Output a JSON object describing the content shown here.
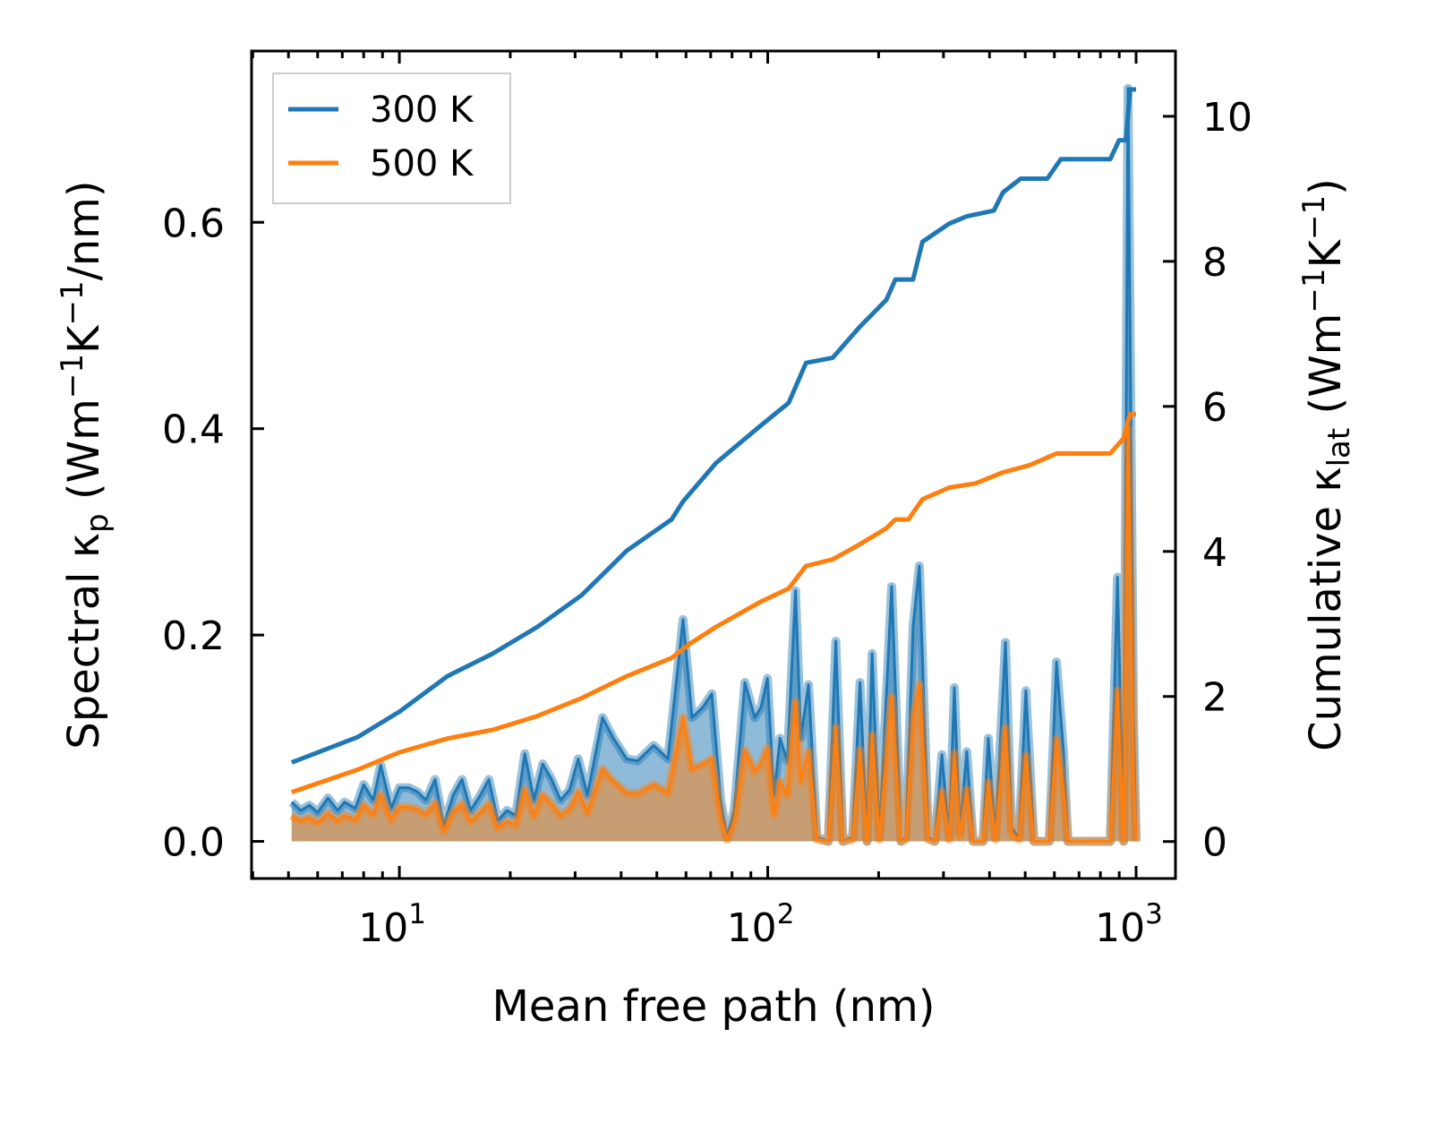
{
  "chart_data": {
    "type": "line",
    "xlabel": "Mean free path (nm)",
    "xscale": "log",
    "xlim": [
      3.97,
      1279
    ],
    "ylim_left": [
      -0.036,
      0.766
    ],
    "ylim_right": [
      -0.51,
      10.9
    ],
    "ylabel_left": {
      "a": "Spectral κ",
      "sub": "p",
      "b": " (Wm",
      "sup1": "−1",
      "c": "K",
      "sup2": "−1",
      "d": "/nm)"
    },
    "ylabel_right": {
      "a": "Cumulative κ",
      "sub": "lat",
      "b": " (Wm",
      "sup1": "−1",
      "c": "K",
      "sup2": "−1",
      "d": ")"
    },
    "x_ticks": [
      {
        "base": "10",
        "exp": "1",
        "value": 10
      },
      {
        "base": "10",
        "exp": "2",
        "value": 100
      },
      {
        "base": "10",
        "exp": "3",
        "value": 1000
      }
    ],
    "y_left_ticks": [
      {
        "label": "0.0",
        "value": 0
      },
      {
        "label": "0.2",
        "value": 0.2
      },
      {
        "label": "0.4",
        "value": 0.4
      },
      {
        "label": "0.6",
        "value": 0.6
      }
    ],
    "y_right_ticks": [
      {
        "label": "0",
        "value": 0
      },
      {
        "label": "2",
        "value": 2
      },
      {
        "label": "4",
        "value": 4
      },
      {
        "label": "6",
        "value": 6
      },
      {
        "label": "8",
        "value": 8
      },
      {
        "label": "10",
        "value": 10
      }
    ],
    "legend": {
      "placement": "top-left",
      "entries": [
        {
          "label": "300 K",
          "color": "#1f77b4"
        },
        {
          "label": "500 K",
          "color": "#ff7f0e"
        }
      ]
    },
    "spectral": {
      "x": [
        5.1,
        5.4,
        5.7,
        6.0,
        6.4,
        6.8,
        7.1,
        7.6,
        8.0,
        8.5,
        8.9,
        9.5,
        10,
        10.6,
        11.2,
        11.8,
        12.5,
        13.2,
        14.0,
        14.8,
        15.6,
        16.6,
        17.5,
        18.5,
        19.6,
        20.7,
        21.9,
        23.2,
        24.5,
        25.9,
        27.4,
        29.0,
        30.6,
        32.4,
        35.6,
        38.1,
        41.4,
        44.3,
        49.0,
        53.6,
        58.9,
        62.3,
        66.7,
        70.5,
        74.5,
        77.5,
        81.1,
        86.7,
        92.2,
        95.9,
        99.8,
        104,
        108,
        113,
        119,
        123,
        129,
        136,
        146,
        153,
        160,
        170,
        178,
        186,
        192,
        201,
        217,
        230,
        237,
        248,
        258,
        273,
        284,
        297,
        311,
        321,
        332,
        347,
        361,
        384,
        397,
        415,
        442,
        459,
        481,
        502,
        528,
        581,
        608,
        635,
        653,
        851,
        890,
        925,
        951,
        984,
        1000
      ],
      "series": [
        {
          "name": "300 K",
          "color": "#1f77b4",
          "values": [
            0.038,
            0.03,
            0.035,
            0.028,
            0.042,
            0.03,
            0.038,
            0.032,
            0.055,
            0.04,
            0.074,
            0.032,
            0.052,
            0.052,
            0.048,
            0.04,
            0.06,
            0.015,
            0.045,
            0.06,
            0.03,
            0.045,
            0.06,
            0.02,
            0.03,
            0.025,
            0.085,
            0.04,
            0.075,
            0.06,
            0.04,
            0.05,
            0.08,
            0.045,
            0.12,
            0.1,
            0.08,
            0.078,
            0.093,
            0.08,
            0.215,
            0.12,
            0.13,
            0.143,
            0.04,
            0.004,
            0.03,
            0.154,
            0.12,
            0.13,
            0.158,
            0.045,
            0.1,
            0.078,
            0.243,
            0.1,
            0.152,
            0.004,
            0,
            0.194,
            0,
            0.004,
            0.154,
            0,
            0.182,
            0.004,
            0.247,
            0,
            0.004,
            0.208,
            0.267,
            0.004,
            0,
            0.084,
            0.004,
            0.149,
            0.009,
            0.087,
            0,
            0,
            0.1,
            0.004,
            0.193,
            0.013,
            0.004,
            0.146,
            0,
            0,
            0.174,
            0.087,
            0,
            0,
            0.256,
            0,
            0.73,
            0.12,
            0
          ]
        },
        {
          "name": "500 K",
          "color": "#ff7f0e",
          "values": [
            0.025,
            0.02,
            0.023,
            0.018,
            0.027,
            0.02,
            0.025,
            0.021,
            0.035,
            0.026,
            0.045,
            0.021,
            0.033,
            0.033,
            0.031,
            0.026,
            0.037,
            0.01,
            0.028,
            0.036,
            0.019,
            0.028,
            0.036,
            0.013,
            0.019,
            0.016,
            0.05,
            0.025,
            0.045,
            0.036,
            0.025,
            0.031,
            0.048,
            0.028,
            0.07,
            0.058,
            0.047,
            0.046,
            0.055,
            0.047,
            0.12,
            0.07,
            0.075,
            0.08,
            0.023,
            0.002,
            0.018,
            0.088,
            0.068,
            0.075,
            0.09,
            0.026,
            0.058,
            0.045,
            0.135,
            0.058,
            0.087,
            0.002,
            0,
            0.11,
            0,
            0.002,
            0.088,
            0,
            0.103,
            0.002,
            0.14,
            0,
            0.002,
            0.118,
            0.152,
            0.002,
            0,
            0.048,
            0.002,
            0.085,
            0.005,
            0.05,
            0,
            0,
            0.057,
            0.002,
            0.11,
            0.007,
            0.002,
            0.083,
            0,
            0,
            0.099,
            0.05,
            0,
            0,
            0.146,
            0,
            0.4,
            0.07,
            0
          ]
        }
      ]
    },
    "cumulative": {
      "series": [
        {
          "name": "300 K",
          "color": "#1f77b4",
          "x": [
            5.1,
            7.7,
            10,
            13.5,
            17.9,
            23.7,
            31.3,
            41.4,
            54.8,
            58.9,
            72.4,
            95.9,
            114,
            127,
            150,
            178,
            210,
            222,
            248,
            263,
            311,
            347,
            411,
            435,
            486,
            574,
            625,
            851,
            899,
            939,
            962,
            1000
          ],
          "values": [
            1.09,
            1.44,
            1.79,
            2.28,
            2.59,
            2.96,
            3.4,
            4.01,
            4.44,
            4.69,
            5.22,
            5.74,
            6.05,
            6.6,
            6.67,
            7.1,
            7.47,
            7.75,
            7.75,
            8.27,
            8.52,
            8.62,
            8.7,
            8.95,
            9.14,
            9.14,
            9.41,
            9.41,
            9.67,
            9.67,
            10.37,
            10.37
          ]
        },
        {
          "name": "500 K",
          "color": "#ff7f0e",
          "x": [
            5.1,
            7.7,
            10,
            13.5,
            17.9,
            23.7,
            31.3,
            41.4,
            54.8,
            61.2,
            72.4,
            95.9,
            114,
            127,
            150,
            178,
            210,
            222,
            241,
            263,
            311,
            367,
            435,
            514,
            608,
            851,
            925,
            962,
            1000
          ],
          "values": [
            0.68,
            0.99,
            1.23,
            1.42,
            1.54,
            1.73,
            1.98,
            2.28,
            2.53,
            2.72,
            2.96,
            3.31,
            3.49,
            3.8,
            3.89,
            4.1,
            4.32,
            4.44,
            4.44,
            4.72,
            4.88,
            4.94,
            5.09,
            5.19,
            5.35,
            5.35,
            5.56,
            5.89,
            5.89
          ]
        }
      ]
    }
  }
}
